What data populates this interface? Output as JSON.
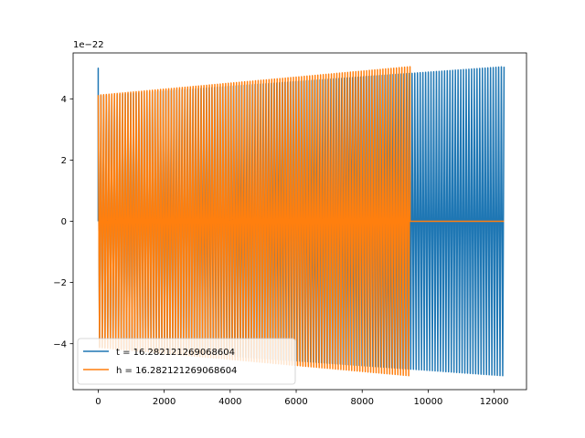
{
  "chart_data": {
    "type": "line",
    "title": "",
    "xlabel": "",
    "ylabel": "",
    "offset_label": "1e−22",
    "xlim": [
      -760,
      12980
    ],
    "ylim": [
      -5.5,
      5.5
    ],
    "x_ticks": [
      0,
      2000,
      4000,
      6000,
      8000,
      10000,
      12000
    ],
    "y_ticks": [
      -4,
      -2,
      0,
      2,
      4
    ],
    "x_tick_labels": [
      "0",
      "2000",
      "4000",
      "6000",
      "8000",
      "10000",
      "12000"
    ],
    "y_tick_labels": [
      "−4",
      "−2",
      "0",
      "2",
      "4"
    ],
    "grid": false,
    "legend_position": "lower-left",
    "series": [
      {
        "name": "t = 16.282121269068604",
        "color": "#1f77b4",
        "x_start": 0,
        "x_end": 12300,
        "cycles": 150,
        "amplitude_start": 4.1,
        "amplitude_end": 5.05,
        "initial_spike": 5.0
      },
      {
        "name": "h = 16.282121269068604",
        "color": "#ff7f0e",
        "x_start": 0,
        "x_end": 9450,
        "cycles": 115,
        "amplitude_start": 4.12,
        "amplitude_end": 5.05,
        "flat_after": 0,
        "flat_until": 12300
      }
    ]
  }
}
